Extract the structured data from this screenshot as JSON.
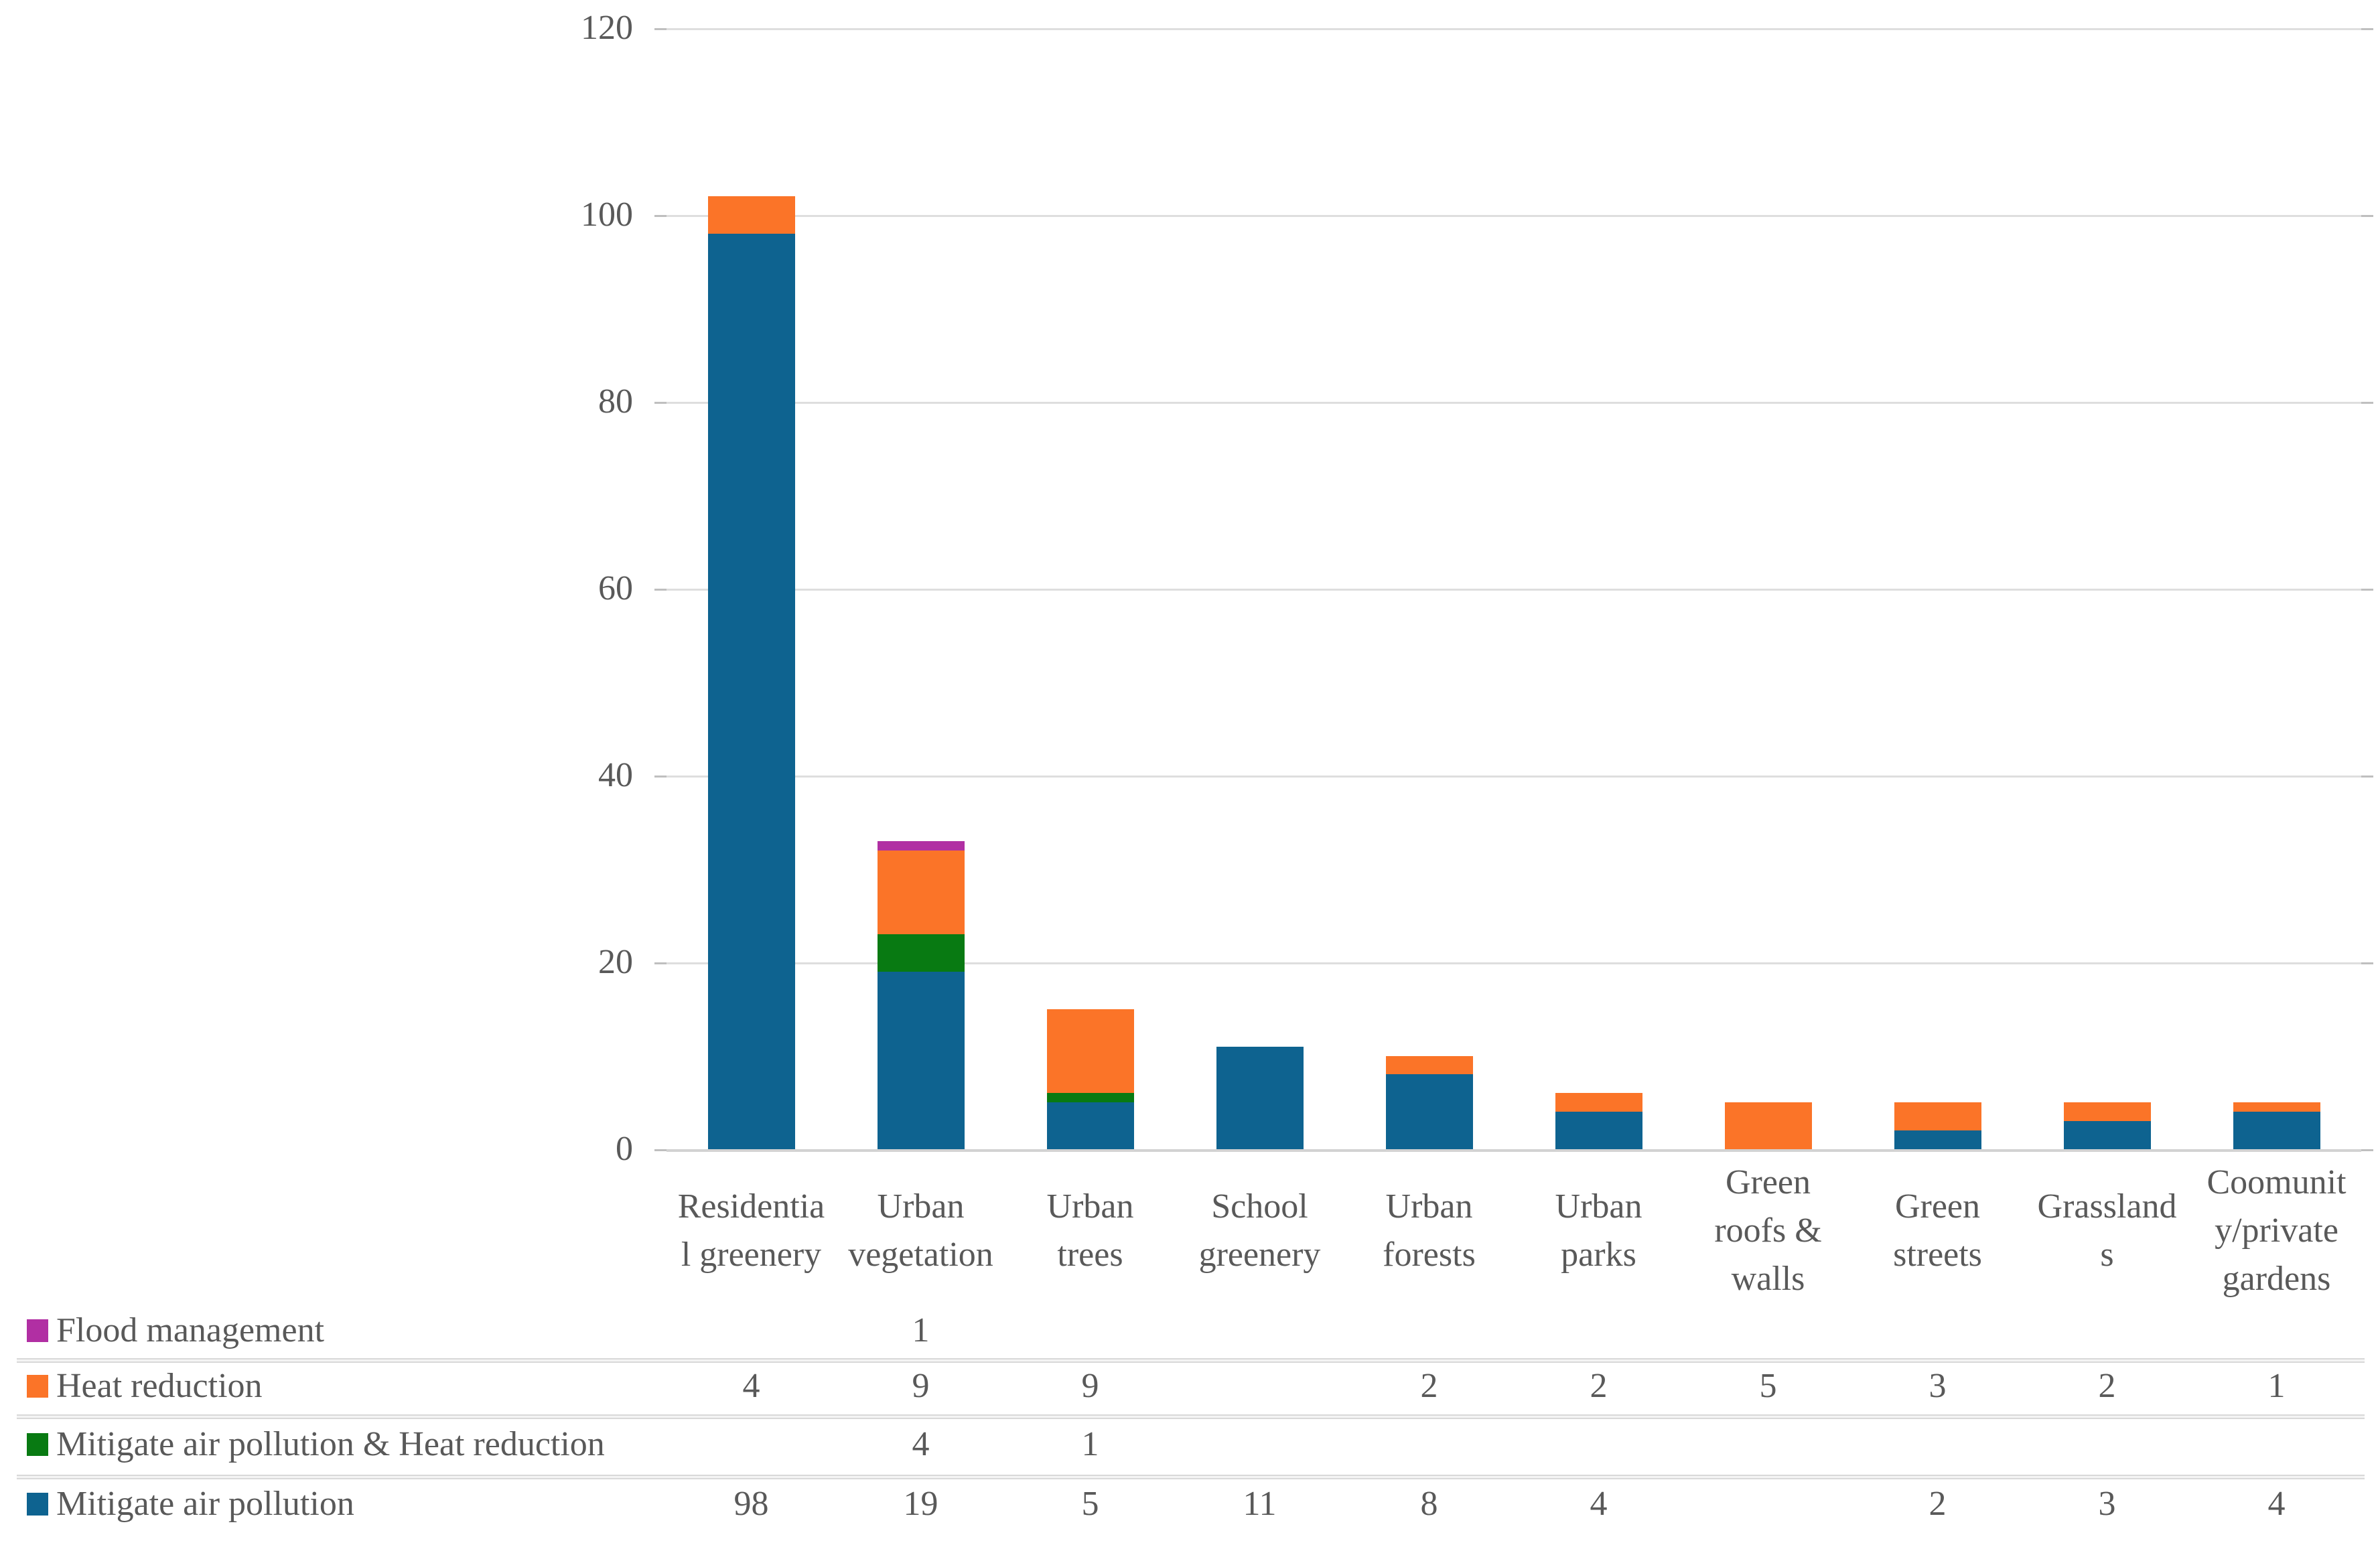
{
  "chart_data": {
    "type": "bar",
    "subtype": "stacked-vertical",
    "title": "",
    "xlabel": "",
    "ylabel": "",
    "ylim": [
      0,
      120
    ],
    "grid": true,
    "legend_position": "data-table-left",
    "y_axis": {
      "min": 0,
      "max": 120,
      "step": 20,
      "ticks": [
        120,
        100,
        80,
        60,
        40,
        20,
        0
      ]
    },
    "categories": [
      {
        "name": "Residential greenery",
        "label": "Residentia\nl greenery"
      },
      {
        "name": "Urban vegetation",
        "label": "Urban\nvegetation"
      },
      {
        "name": "Urban trees",
        "label": "Urban\ntrees"
      },
      {
        "name": "School greenery",
        "label": "School\ngreenery"
      },
      {
        "name": "Urban forests",
        "label": "Urban\nforests"
      },
      {
        "name": "Urban parks",
        "label": "Urban\nparks"
      },
      {
        "name": "Green roofs & walls",
        "label": "Green\nroofs &\nwalls"
      },
      {
        "name": "Green streets",
        "label": "Green\nstreets"
      },
      {
        "name": "Grasslands",
        "label": "Grassland\ns"
      },
      {
        "name": "Community/private gardens",
        "label": "Coomunit\ny/private\ngardens"
      }
    ],
    "series": [
      {
        "name": "Flood management",
        "color": "#B12FA3",
        "values": [
          null,
          1,
          null,
          null,
          null,
          null,
          null,
          null,
          null,
          null
        ]
      },
      {
        "name": "Heat reduction",
        "color": "#FB7428",
        "values": [
          4,
          9,
          9,
          null,
          2,
          2,
          5,
          3,
          2,
          1
        ]
      },
      {
        "name": "Mitigate air pollution & Heat reduction",
        "color": "#087A12",
        "values": [
          null,
          4,
          1,
          null,
          null,
          null,
          null,
          null,
          null,
          null
        ]
      },
      {
        "name": "Mitigate air pollution",
        "color": "#0E6390",
        "values": [
          98,
          19,
          5,
          11,
          8,
          4,
          null,
          2,
          3,
          4
        ]
      }
    ],
    "stack_order_bottom_to_top": [
      3,
      2,
      1,
      0
    ],
    "totals": [
      102,
      33,
      15,
      11,
      10,
      6,
      5,
      5,
      5,
      5
    ]
  }
}
